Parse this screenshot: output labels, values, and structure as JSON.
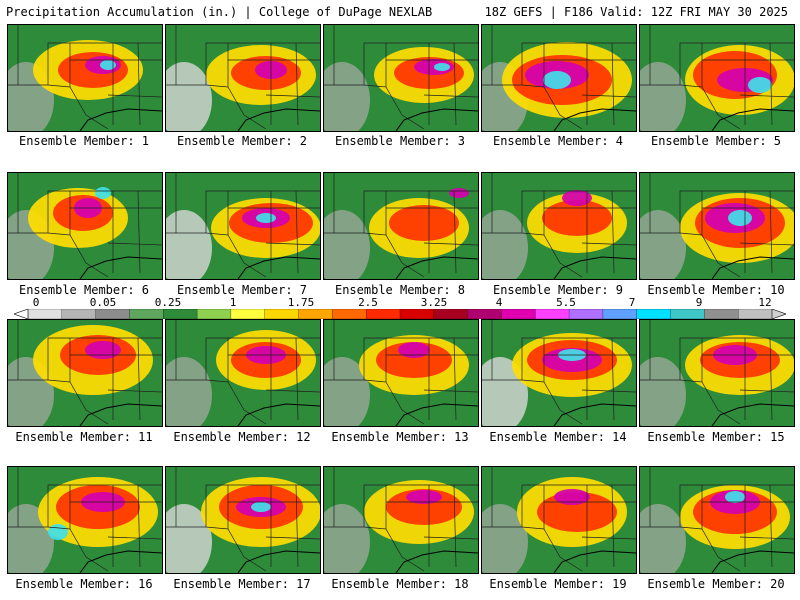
{
  "header": {
    "left": "Precipitation Accumulation (in.) | College of DuPage NEXLAB",
    "right": "18Z GEFS | F186 Valid: 12Z FRI MAY 30 2025"
  },
  "members": [
    {
      "label": "Ensemble Member: 1"
    },
    {
      "label": "Ensemble Member: 2"
    },
    {
      "label": "Ensemble Member: 3"
    },
    {
      "label": "Ensemble Member: 4"
    },
    {
      "label": "Ensemble Member: 5"
    },
    {
      "label": "Ensemble Member: 6"
    },
    {
      "label": "Ensemble Member: 7"
    },
    {
      "label": "Ensemble Member: 8"
    },
    {
      "label": "Ensemble Member: 9"
    },
    {
      "label": "Ensemble Member: 10"
    },
    {
      "label": "Ensemble Member: 11"
    },
    {
      "label": "Ensemble Member: 12"
    },
    {
      "label": "Ensemble Member: 13"
    },
    {
      "label": "Ensemble Member: 14"
    },
    {
      "label": "Ensemble Member: 15"
    },
    {
      "label": "Ensemble Member: 16"
    },
    {
      "label": "Ensemble Member: 17"
    },
    {
      "label": "Ensemble Member: 18"
    },
    {
      "label": "Ensemble Member: 19"
    },
    {
      "label": "Ensemble Member: 20"
    }
  ],
  "colorbar": {
    "labels": [
      "0",
      "0.05",
      "0.25",
      "1",
      "1.75",
      "2.5",
      "3.25",
      "4",
      "5.5",
      "7",
      "9",
      "12"
    ],
    "colors": [
      "#e0e0e0",
      "#b5b5b5",
      "#8c8c8c",
      "#5fa75f",
      "#2e8b3a",
      "#8fd14f",
      "#ffff40",
      "#ffd700",
      "#ffa500",
      "#ff6a00",
      "#ff2a00",
      "#d90000",
      "#a80020",
      "#b00070",
      "#e000b0",
      "#ff40ff",
      "#b070ff",
      "#60a0ff",
      "#00e0ff",
      "#40c8c8",
      "#909090",
      "#c0c0c0"
    ]
  }
}
